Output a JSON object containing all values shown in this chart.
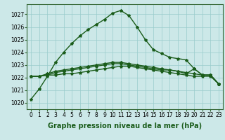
{
  "title": "Graphe pression niveau de la mer (hPa)",
  "title_fontsize": 7,
  "ylabel_ticks": [
    1020,
    1021,
    1022,
    1023,
    1024,
    1025,
    1026,
    1027
  ],
  "ylim": [
    1019.5,
    1027.8
  ],
  "xlim": [
    -0.5,
    23.5
  ],
  "background_color": "#cce8e8",
  "grid_color": "#99cccc",
  "line_color": "#1a5c1a",
  "series": [
    [
      1020.3,
      1021.1,
      1022.1,
      1023.2,
      1024.0,
      1024.7,
      1025.3,
      1025.8,
      1026.2,
      1026.6,
      1027.1,
      1027.3,
      1026.9,
      1026.0,
      1025.0,
      1024.2,
      1023.9,
      1023.6,
      1023.5,
      1023.4,
      1022.7,
      1022.2,
      1022.2,
      1021.5
    ],
    [
      1022.1,
      1022.1,
      1022.2,
      1022.2,
      1022.3,
      1022.3,
      1022.4,
      1022.5,
      1022.6,
      1022.7,
      1022.8,
      1022.9,
      1022.9,
      1022.8,
      1022.7,
      1022.6,
      1022.5,
      1022.4,
      1022.3,
      1022.2,
      1022.1,
      1022.1,
      1022.1,
      1021.5
    ],
    [
      1022.1,
      1022.1,
      1022.2,
      1022.4,
      1022.5,
      1022.6,
      1022.7,
      1022.8,
      1022.9,
      1023.0,
      1023.1,
      1023.1,
      1023.0,
      1022.9,
      1022.8,
      1022.7,
      1022.6,
      1022.6,
      1022.5,
      1022.3,
      1022.7,
      1022.2,
      1022.2,
      1021.5
    ],
    [
      1022.1,
      1022.1,
      1022.3,
      1022.5,
      1022.6,
      1022.7,
      1022.8,
      1022.9,
      1023.0,
      1023.1,
      1023.2,
      1023.2,
      1023.1,
      1023.0,
      1022.9,
      1022.8,
      1022.7,
      1022.6,
      1022.5,
      1022.4,
      1022.3,
      1022.2,
      1022.2,
      1021.5
    ]
  ],
  "xticks": [
    0,
    1,
    2,
    3,
    4,
    5,
    6,
    7,
    8,
    9,
    10,
    11,
    12,
    13,
    14,
    15,
    16,
    17,
    18,
    19,
    20,
    21,
    22,
    23
  ],
  "marker": "*",
  "markersize": 3,
  "linewidth": 1.0,
  "tick_fontsize": 5.5
}
